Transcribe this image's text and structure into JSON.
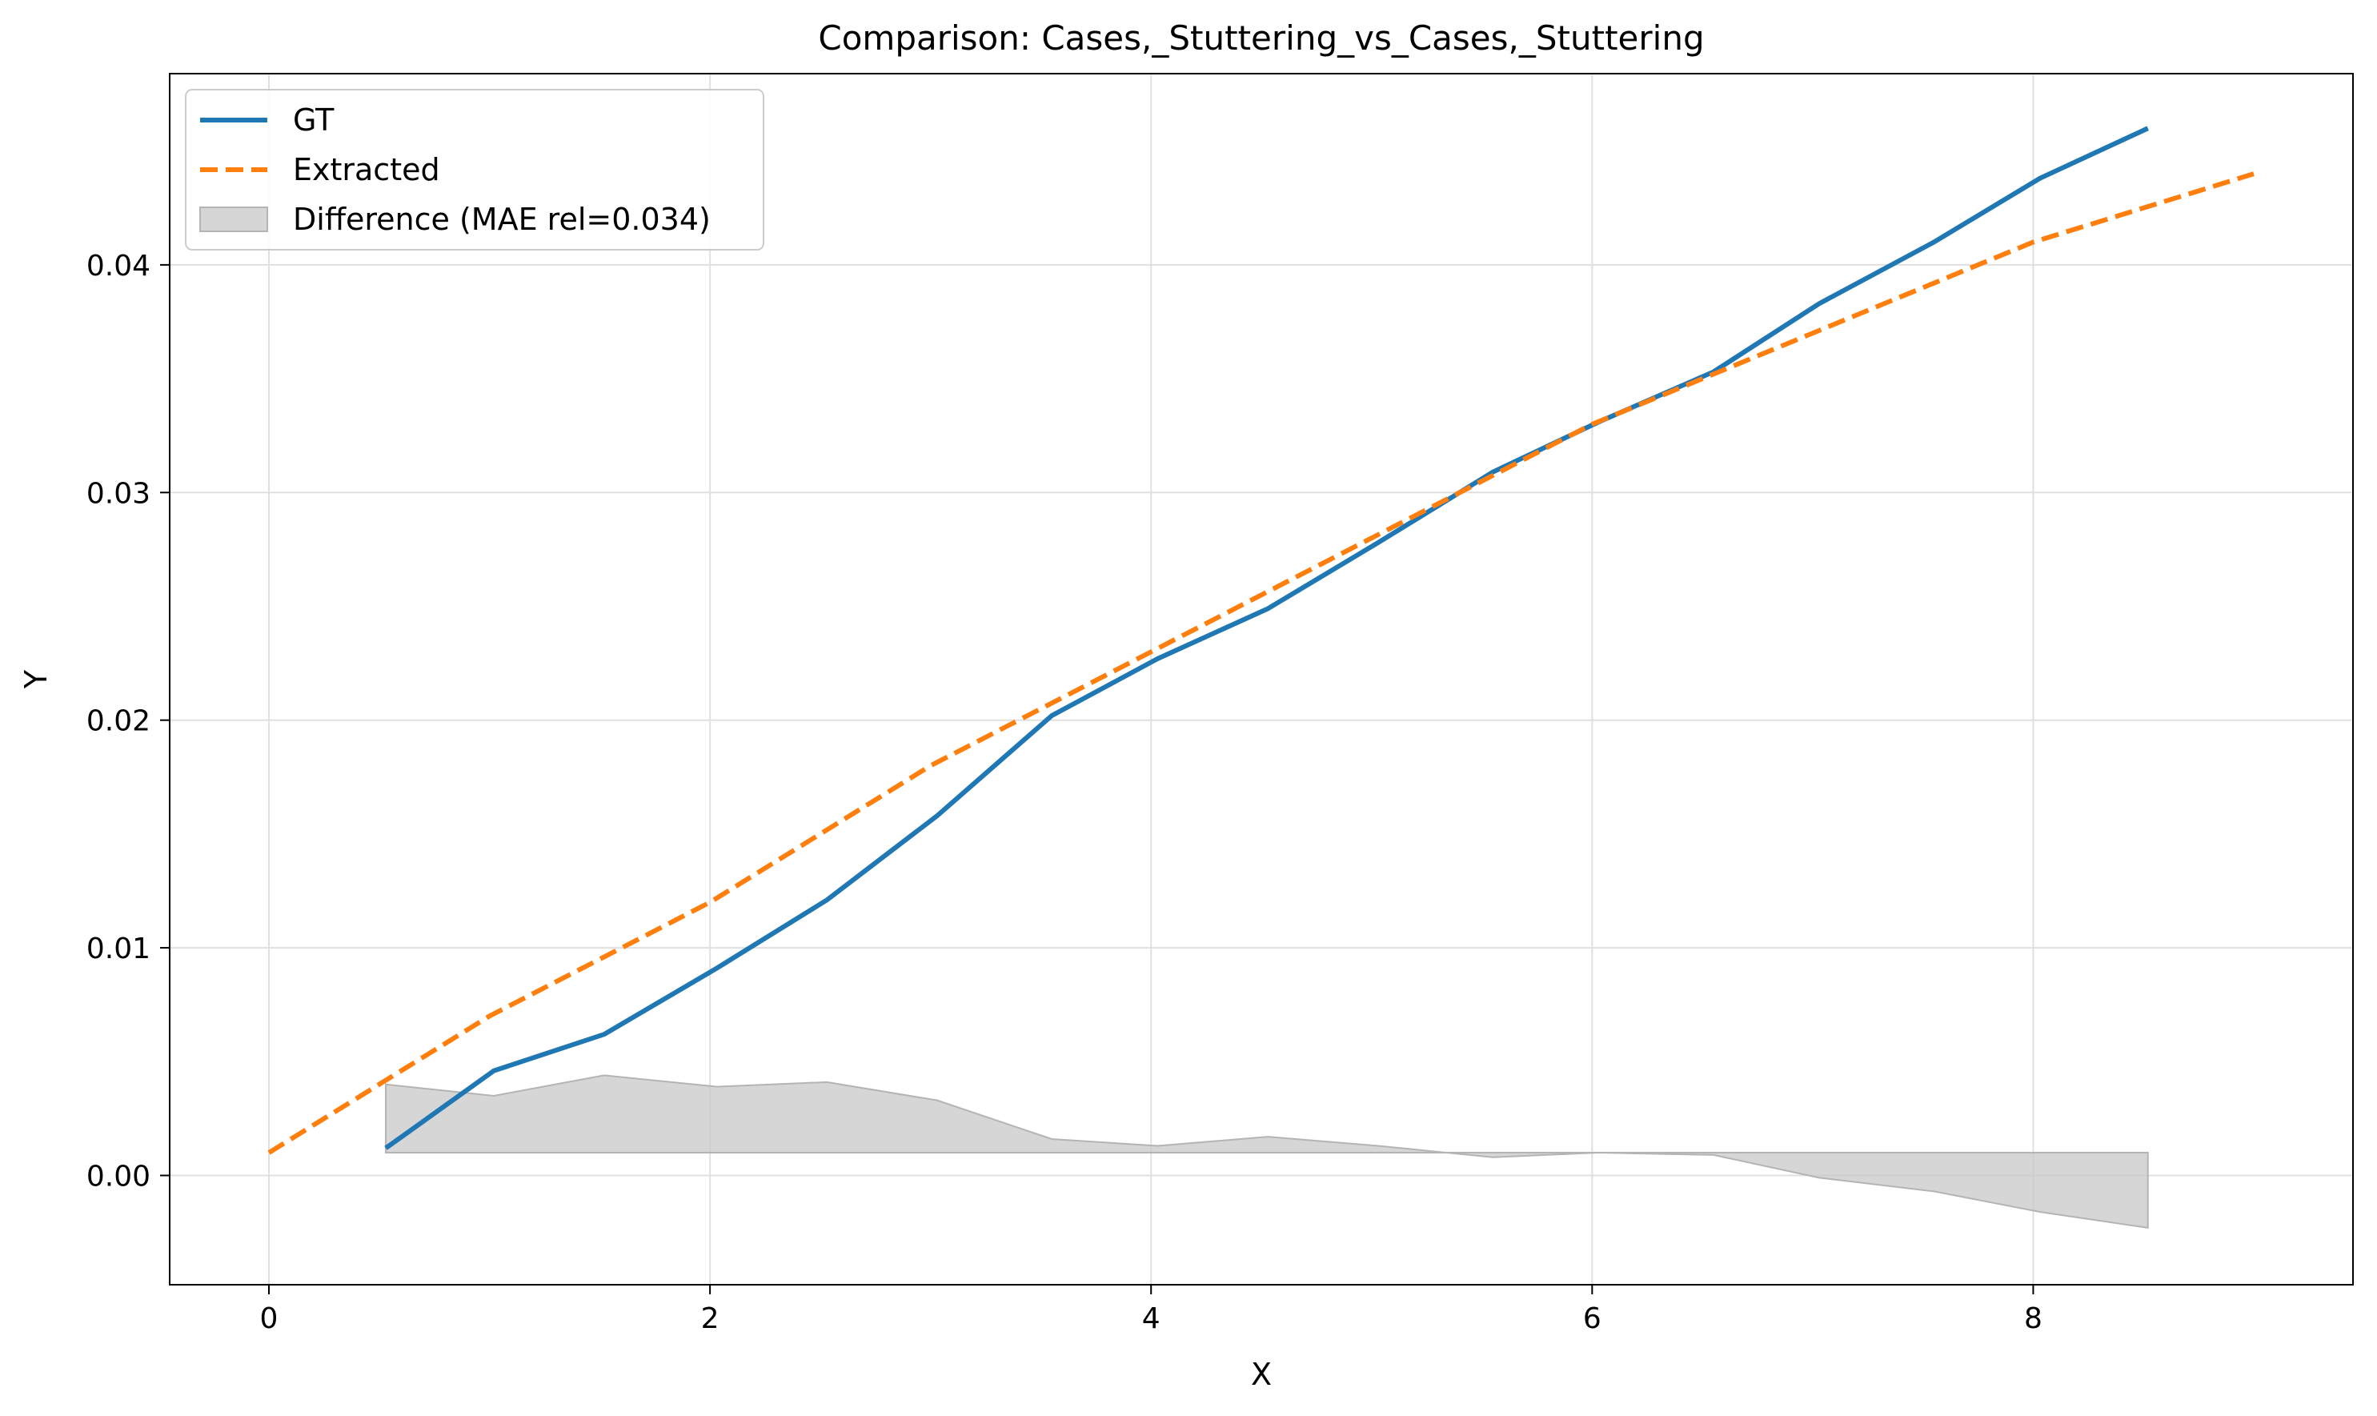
{
  "chart_data": {
    "type": "line",
    "title": "Comparison: Cases,_Stuttering_vs_Cases,_Stuttering",
    "xlabel": "X",
    "ylabel": "Y",
    "xlim": [
      -0.45,
      9.45
    ],
    "ylim": [
      -0.0048,
      0.0484
    ],
    "xticks": [
      0,
      2,
      4,
      6,
      8
    ],
    "yticks": [
      0.0,
      0.01,
      0.02,
      0.03,
      0.04
    ],
    "xtick_labels": [
      "0",
      "2",
      "4",
      "6",
      "8"
    ],
    "ytick_labels": [
      "0.00",
      "0.01",
      "0.02",
      "0.03",
      "0.04"
    ],
    "grid": true,
    "legend_position": "top-left",
    "series": [
      {
        "name": "GT",
        "style": "solid",
        "color": "#1f77b4",
        "x": [
          0.53,
          1.02,
          1.52,
          2.03,
          2.53,
          3.03,
          3.55,
          4.03,
          4.53,
          5.03,
          5.55,
          6.03,
          6.55,
          7.03,
          7.55,
          8.03,
          8.52
        ],
        "y": [
          0.0012,
          0.0046,
          0.0062,
          0.0091,
          0.0121,
          0.0158,
          0.0202,
          0.0227,
          0.0249,
          0.0278,
          0.0309,
          0.0331,
          0.0353,
          0.0383,
          0.041,
          0.0438,
          0.046
        ]
      },
      {
        "name": "Extracted",
        "style": "dashed",
        "color": "#ff7f0e",
        "x": [
          0.0,
          0.5,
          1.0,
          1.5,
          2.0,
          2.5,
          3.0,
          3.5,
          4.0,
          4.5,
          5.0,
          5.5,
          6.0,
          6.5,
          7.0,
          7.5,
          8.0,
          8.5,
          9.0
        ],
        "y": [
          0.001,
          0.004,
          0.007,
          0.0095,
          0.012,
          0.015,
          0.018,
          0.0205,
          0.023,
          0.0255,
          0.028,
          0.0305,
          0.033,
          0.035,
          0.037,
          0.039,
          0.041,
          0.0425,
          0.044
        ]
      }
    ],
    "difference": {
      "name": "Difference (MAE rel=0.034)",
      "color": "#c8c8c8",
      "baseline": 0.001,
      "x": [
        0.53,
        1.02,
        1.52,
        2.03,
        2.53,
        3.03,
        3.55,
        4.03,
        4.53,
        5.03,
        5.55,
        6.03,
        6.55,
        7.03,
        7.55,
        8.03,
        8.52
      ],
      "y": [
        0.004,
        0.0035,
        0.0044,
        0.0039,
        0.0041,
        0.0033,
        0.0016,
        0.0013,
        0.0017,
        0.0013,
        0.0008,
        0.001,
        0.0009,
        -0.0001,
        -0.0007,
        -0.0016,
        -0.0023
      ]
    }
  }
}
